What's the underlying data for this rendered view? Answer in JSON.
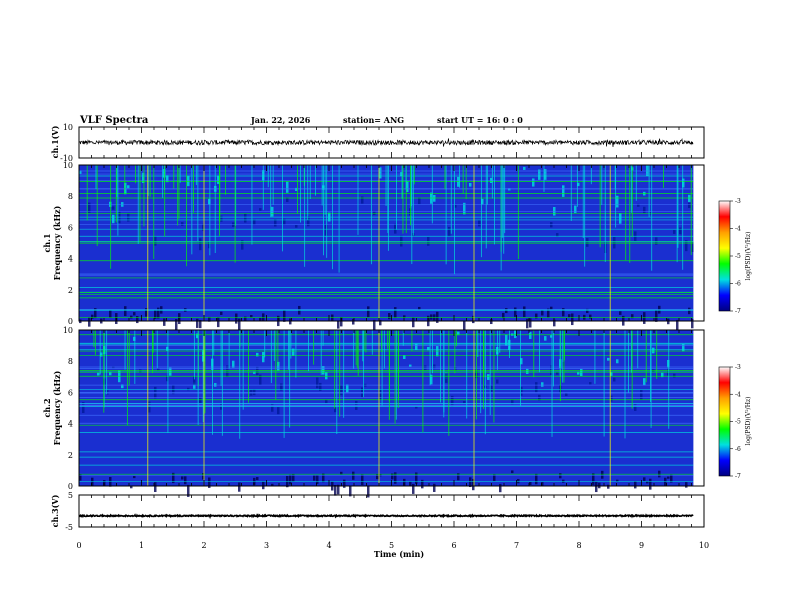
{
  "header": {
    "title": "VLF Spectra",
    "date": "Jan. 22, 2026",
    "station": "station= ANG",
    "start": "start  UT =   16: 0  : 0"
  },
  "colorbar": {
    "label": "log(PSD)(V²/Hz)",
    "ticks": [
      "-3",
      "-4",
      "-5",
      "-6",
      "-7"
    ],
    "colors": [
      "#ffffff",
      "#ff0000",
      "#ffa000",
      "#ffff00",
      "#00ff00",
      "#00e0e0",
      "#0000ff",
      "#000080"
    ]
  },
  "chart_data": [
    {
      "type": "line",
      "name": "ch.1 waveform",
      "ylabel": "ch.1(V)",
      "ylim": [
        -10,
        10
      ],
      "y_ticks": [
        "10",
        "-10"
      ],
      "mean_level": 0,
      "noise_amplitude": 1.5,
      "x_range_min": [
        0,
        9.83
      ]
    },
    {
      "type": "heatmap",
      "name": "ch.1 spectrogram",
      "ylabel": "ch.1\nFrequency  (kHz)",
      "ylim": [
        0,
        10
      ],
      "y_ticks": [
        "0",
        "2",
        "4",
        "6",
        "8",
        "10"
      ],
      "x_range_min": [
        0,
        9.83
      ],
      "psd_range_log": [
        -7,
        -3
      ]
    },
    {
      "type": "heatmap",
      "name": "ch.2 spectrogram",
      "ylabel": "ch.2\nFrequency  (kHz)",
      "ylim": [
        0,
        10
      ],
      "y_ticks": [
        "0",
        "2",
        "4",
        "6",
        "8",
        "10"
      ],
      "x_range_min": [
        0,
        9.83
      ],
      "psd_range_log": [
        -7,
        -3
      ]
    },
    {
      "type": "line",
      "name": "ch.3 waveform",
      "ylabel": "ch.3(V)",
      "ylim": [
        -5,
        5
      ],
      "y_ticks": [
        "5",
        "-5"
      ],
      "mean_level": -1.5,
      "noise_amplitude": 0.2,
      "x_range_min": [
        0,
        9.83
      ]
    }
  ],
  "xaxis": {
    "label": "Time  (min)",
    "ticks": [
      "0",
      "1",
      "2",
      "3",
      "4",
      "5",
      "6",
      "7",
      "8",
      "9",
      "10"
    ],
    "range": [
      0,
      10
    ]
  }
}
